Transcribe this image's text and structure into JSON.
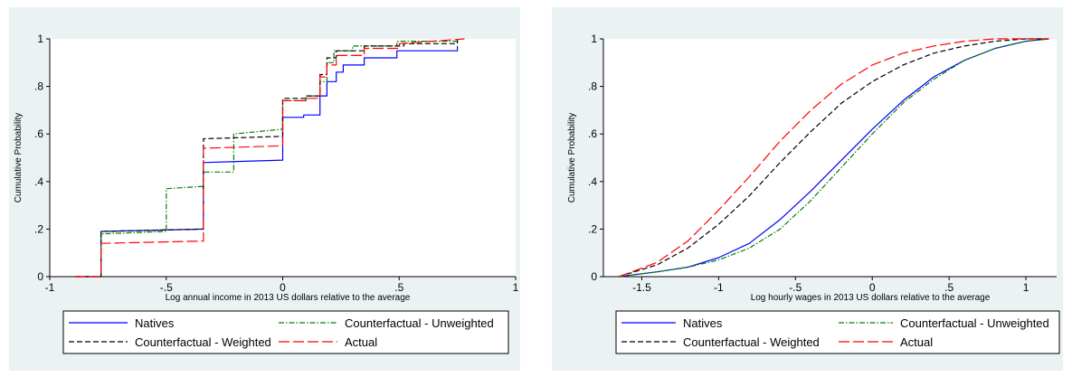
{
  "chart_data": [
    {
      "type": "line",
      "step": true,
      "xlabel": "Log annual income in 2013 US dollars relative to the average",
      "ylabel": "Cumulative Probability",
      "xlim": [
        -1,
        1
      ],
      "ylim": [
        0,
        1
      ],
      "xticks": [
        -1,
        -0.5,
        0,
        0.5,
        1
      ],
      "xtick_labels": [
        "-1",
        "-.5",
        "0",
        ".5",
        "1"
      ],
      "yticks": [
        0,
        0.2,
        0.4,
        0.6,
        0.8,
        1
      ],
      "ytick_labels": [
        "0",
        ".2",
        ".4",
        ".6",
        ".8",
        "1"
      ],
      "legend_position": "bottom",
      "series": [
        {
          "name": "Natives",
          "color": "#0000ff",
          "dash": "solid",
          "x": [
            -0.89,
            -0.78,
            -0.78,
            -0.34,
            -0.34,
            0,
            0,
            0.09,
            0.09,
            0.16,
            0.16,
            0.19,
            0.19,
            0.23,
            0.23,
            0.26,
            0.26,
            0.35,
            0.35,
            0.49,
            0.49,
            0.75,
            0.75
          ],
          "y": [
            0,
            0,
            0.19,
            0.2,
            0.48,
            0.49,
            0.67,
            0.67,
            0.68,
            0.68,
            0.76,
            0.76,
            0.82,
            0.82,
            0.86,
            0.86,
            0.89,
            0.89,
            0.92,
            0.92,
            0.95,
            0.95,
            0.97
          ]
        },
        {
          "name": "Counterfactual - Unweighted",
          "color": "#008000",
          "dash": "dashdot",
          "x": [
            -0.89,
            -0.78,
            -0.78,
            -0.5,
            -0.5,
            -0.34,
            -0.34,
            -0.21,
            -0.21,
            0,
            0,
            0.1,
            0.1,
            0.16,
            0.16,
            0.19,
            0.19,
            0.22,
            0.22,
            0.3,
            0.3,
            0.49,
            0.49,
            0.75,
            0.75
          ],
          "y": [
            0,
            0,
            0.18,
            0.19,
            0.37,
            0.38,
            0.44,
            0.44,
            0.6,
            0.62,
            0.74,
            0.74,
            0.76,
            0.76,
            0.82,
            0.82,
            0.9,
            0.9,
            0.95,
            0.95,
            0.97,
            0.97,
            0.99,
            0.99,
            1.0
          ]
        },
        {
          "name": "Counterfactual - Weighted",
          "color": "#000000",
          "dash": "dashed",
          "x": [
            -0.89,
            -0.78,
            -0.78,
            -0.34,
            -0.34,
            0,
            0,
            0.1,
            0.1,
            0.16,
            0.16,
            0.19,
            0.19,
            0.23,
            0.23,
            0.35,
            0.35,
            0.52,
            0.52,
            0.75,
            0.75
          ],
          "y": [
            0,
            0,
            0.19,
            0.2,
            0.58,
            0.59,
            0.75,
            0.75,
            0.76,
            0.76,
            0.85,
            0.85,
            0.92,
            0.92,
            0.95,
            0.95,
            0.97,
            0.97,
            0.98,
            0.98,
            1.0
          ]
        },
        {
          "name": "Actual",
          "color": "#ff0000",
          "dash": "longdash",
          "x": [
            -0.89,
            -0.78,
            -0.78,
            -0.34,
            -0.34,
            0,
            0,
            0.1,
            0.1,
            0.16,
            0.16,
            0.19,
            0.19,
            0.23,
            0.23,
            0.35,
            0.35,
            0.5,
            0.5,
            0.78
          ],
          "y": [
            0,
            0,
            0.14,
            0.15,
            0.54,
            0.55,
            0.74,
            0.74,
            0.75,
            0.75,
            0.84,
            0.84,
            0.89,
            0.89,
            0.93,
            0.93,
            0.96,
            0.96,
            0.98,
            1.0
          ]
        }
      ],
      "legend": {
        "items": [
          {
            "name": "Natives",
            "label": "Natives",
            "color": "#0000ff",
            "dash": "solid"
          },
          {
            "name": "Counterfactual - Unweighted",
            "label": "Counterfactual - Unweighted",
            "color": "#008000",
            "dash": "dashdot"
          },
          {
            "name": "Counterfactual - Weighted",
            "label": "Counterfactual - Weighted",
            "color": "#000000",
            "dash": "dashed"
          },
          {
            "name": "Actual",
            "label": "Actual",
            "color": "#ff0000",
            "dash": "longdash"
          }
        ]
      }
    },
    {
      "type": "line",
      "step": false,
      "xlabel": "Log hourly wages in 2013 US dollars relative to the average",
      "ylabel": "Cumulative Probability",
      "xlim": [
        -1.75,
        1.2
      ],
      "ylim": [
        0,
        1
      ],
      "xticks": [
        -1.5,
        -1,
        -0.5,
        0,
        0.5,
        1
      ],
      "xtick_labels": [
        "-1.5",
        "-1",
        "-.5",
        "0",
        ".5",
        "1"
      ],
      "yticks": [
        0,
        0.2,
        0.4,
        0.6,
        0.8,
        1
      ],
      "ytick_labels": [
        "0",
        ".2",
        ".4",
        ".6",
        ".8",
        "1"
      ],
      "legend_position": "bottom",
      "series": [
        {
          "name": "Natives",
          "color": "#0000ff",
          "dash": "solid",
          "x": [
            -1.65,
            -1.4,
            -1.2,
            -1.0,
            -0.8,
            -0.6,
            -0.4,
            -0.2,
            0.0,
            0.2,
            0.4,
            0.6,
            0.8,
            1.0,
            1.15
          ],
          "y": [
            0.0,
            0.02,
            0.04,
            0.08,
            0.14,
            0.24,
            0.36,
            0.49,
            0.62,
            0.74,
            0.84,
            0.91,
            0.96,
            0.99,
            1.0
          ]
        },
        {
          "name": "Counterfactual - Unweighted",
          "color": "#008000",
          "dash": "dashdot",
          "x": [
            -1.65,
            -1.4,
            -1.2,
            -1.0,
            -0.8,
            -0.6,
            -0.4,
            -0.2,
            0.0,
            0.2,
            0.4,
            0.6,
            0.8,
            1.0,
            1.15
          ],
          "y": [
            0.0,
            0.02,
            0.04,
            0.07,
            0.12,
            0.2,
            0.32,
            0.46,
            0.6,
            0.73,
            0.83,
            0.91,
            0.96,
            0.99,
            1.0
          ]
        },
        {
          "name": "Counterfactual - Weighted",
          "color": "#000000",
          "dash": "dashed",
          "x": [
            -1.65,
            -1.4,
            -1.2,
            -1.0,
            -0.8,
            -0.6,
            -0.4,
            -0.2,
            0.0,
            0.2,
            0.4,
            0.6,
            0.8,
            1.0,
            1.15
          ],
          "y": [
            0.0,
            0.05,
            0.12,
            0.22,
            0.34,
            0.48,
            0.61,
            0.73,
            0.82,
            0.89,
            0.94,
            0.97,
            0.99,
            1.0,
            1.0
          ]
        },
        {
          "name": "Actual",
          "color": "#ff0000",
          "dash": "longdash",
          "x": [
            -1.65,
            -1.4,
            -1.2,
            -1.0,
            -0.8,
            -0.6,
            -0.4,
            -0.2,
            0.0,
            0.2,
            0.4,
            0.6,
            0.8,
            1.0,
            1.15
          ],
          "y": [
            0.0,
            0.06,
            0.15,
            0.28,
            0.42,
            0.57,
            0.7,
            0.81,
            0.89,
            0.94,
            0.97,
            0.99,
            1.0,
            1.0,
            1.0
          ]
        }
      ],
      "legend": {
        "items": [
          {
            "name": "Natives",
            "label": "Natives",
            "color": "#0000ff",
            "dash": "solid"
          },
          {
            "name": "Counterfactual - Unweighted",
            "label": "Counterfactual - Unweighted",
            "color": "#008000",
            "dash": "dashdot"
          },
          {
            "name": "Counterfactual - Weighted",
            "label": "Counterfactual - Weighted",
            "color": "#000000",
            "dash": "dashed"
          },
          {
            "name": "Actual",
            "label": "Actual",
            "color": "#ff0000",
            "dash": "longdash"
          }
        ]
      }
    }
  ]
}
